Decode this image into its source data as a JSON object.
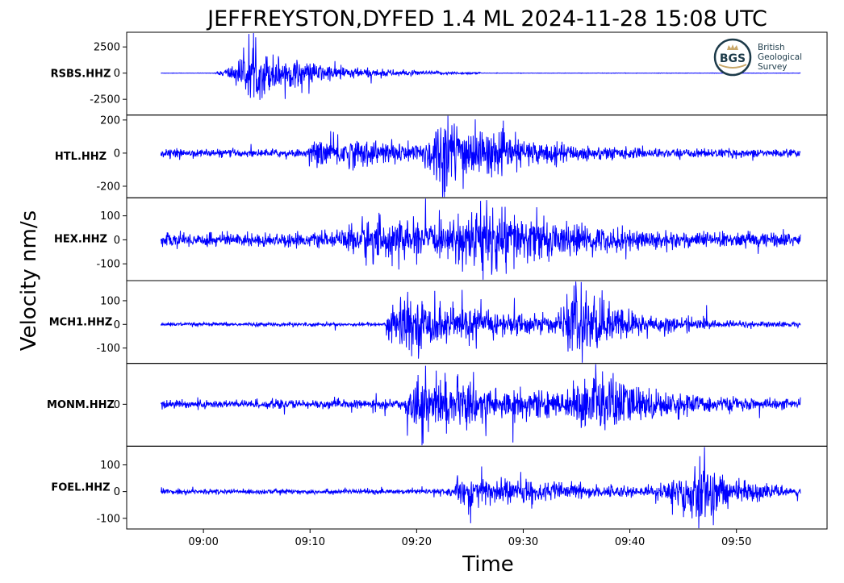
{
  "chart_data": {
    "type": "line",
    "title": "JEFFREYSTON,DYFED 1.4 ML   2024-11-28 15:08 UTC",
    "xlabel": "Time",
    "ylabel": "Velocity nm/s",
    "x_ticks": [
      "09:00",
      "09:10",
      "09:20",
      "09:30",
      "09:40",
      "09:50"
    ],
    "x_tick_minutes": [
      0,
      10,
      20,
      30,
      40,
      50
    ],
    "xlim_minutes": [
      -7.2,
      58.5
    ],
    "time_range_minutes": [
      -4,
      56
    ],
    "line_color": "#0000ff",
    "panels": [
      {
        "name": "RSBS.HHZ",
        "ylim": [
          -4000,
          3900
        ],
        "yticks": [
          -2500,
          0,
          2500
        ],
        "series": {
          "noise": 20,
          "events": [
            {
              "start": 0.8,
              "peak": 4.6,
              "end": 26,
              "amplitude": 2600,
              "rise": 1.5
            }
          ]
        }
      },
      {
        "name": "HTL.HHZ",
        "ylim": [
          -270,
          230
        ],
        "yticks": [
          -200,
          0,
          200
        ],
        "series": {
          "noise": 25,
          "events": [
            {
              "start": 9.8,
              "peak": 12.0,
              "end": 50,
              "amplitude": 80,
              "rise": 0.5
            },
            {
              "start": 20.5,
              "peak": 22.5,
              "end": 40,
              "amplitude": 210,
              "rise": 0.8
            }
          ]
        }
      },
      {
        "name": "HEX.HHZ",
        "ylim": [
          -170,
          175
        ],
        "yticks": [
          -100,
          0,
          100
        ],
        "series": {
          "noise": 30,
          "events": [
            {
              "start": 12.5,
              "peak": 15,
              "end": 56,
              "amplitude": 70,
              "rise": 1
            },
            {
              "start": 23,
              "peak": 26,
              "end": 45,
              "amplitude": 120,
              "rise": 1
            }
          ]
        }
      },
      {
        "name": "MCH1.HHZ",
        "ylim": [
          -165,
          185
        ],
        "yticks": [
          -100,
          0,
          100
        ],
        "series": {
          "noise": 8,
          "events": [
            {
              "start": 17.1,
              "peak": 18.0,
              "end": 56,
              "amplitude": 120,
              "rise": 0.2
            },
            {
              "start": 33.5,
              "peak": 35,
              "end": 48,
              "amplitude": 150,
              "rise": 1
            }
          ]
        }
      },
      {
        "name": "MONM.HHZ",
        "ylim": [
          -200,
          195
        ],
        "yticks": [
          0
        ],
        "series": {
          "noise": 22,
          "events": [
            {
              "start": 18.8,
              "peak": 20.5,
              "end": 56,
              "amplitude": 130,
              "rise": 0.6
            },
            {
              "start": 34,
              "peak": 37,
              "end": 50,
              "amplitude": 150,
              "rise": 1
            }
          ]
        }
      },
      {
        "name": "FOEL.HHZ",
        "ylim": [
          -140,
          170
        ],
        "yticks": [
          -100,
          0,
          100
        ],
        "series": {
          "noise": 10,
          "events": [
            {
              "start": 23.5,
              "peak": 25,
              "end": 56,
              "amplitude": 60,
              "rise": 0.3
            },
            {
              "start": 42,
              "peak": 46.5,
              "end": 56,
              "amplitude": 130,
              "rise": 1.5
            }
          ]
        }
      }
    ]
  },
  "logo": {
    "abbr": "BGS",
    "lines": [
      "British",
      "Geological",
      "Survey"
    ],
    "color": "#1d3b4a",
    "accent": "#c9a86a"
  }
}
